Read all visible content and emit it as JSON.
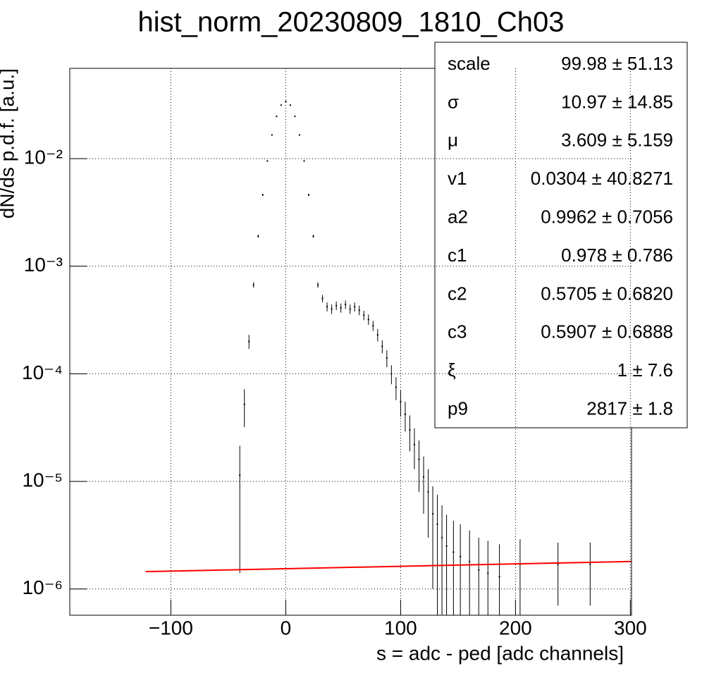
{
  "chart_data": {
    "type": "scatter",
    "title": "hist_norm_20230809_1810_Ch03",
    "x_label": "s = adc - ped [adc channels]",
    "y_label": "dN/ds p.d.f. [a.u.]",
    "log_y": true,
    "grid": true,
    "color": "#000000",
    "xlim": [
      -188,
      301
    ],
    "ylim": [
      5.7e-07,
      0.069
    ],
    "xticks": [
      {
        "value": -100,
        "label": "−100"
      },
      0,
      100,
      200,
      300
    ],
    "yticks": [
      {
        "value": 1e-06,
        "label": "10⁻⁶"
      },
      {
        "value": 1e-05,
        "label": "10⁻⁵"
      },
      {
        "value": 0.0001,
        "label": "10⁻⁴"
      },
      {
        "value": 0.001,
        "label": "10⁻³"
      },
      {
        "value": 0.01,
        "label": "10⁻²"
      }
    ],
    "x": [
      -40,
      -36,
      -32,
      -28,
      -24,
      -20,
      -16,
      -12,
      -8,
      -4,
      0,
      4,
      8,
      12,
      16,
      20,
      24,
      28,
      32,
      36,
      40,
      44,
      48,
      52,
      56,
      60,
      64,
      68,
      72,
      76,
      80,
      84,
      88,
      92,
      96,
      100,
      104,
      108,
      112,
      116,
      120,
      124,
      128,
      132,
      136,
      140,
      146,
      152,
      160,
      168,
      176,
      186,
      204,
      237,
      265
    ],
    "values": [
      1.14e-05,
      5.2e-05,
      0.0002,
      0.00067,
      0.0019,
      0.0046,
      0.0095,
      0.0166,
      0.0247,
      0.0314,
      0.034,
      0.0314,
      0.0247,
      0.0166,
      0.0095,
      0.0046,
      0.0019,
      0.00067,
      0.0005,
      0.00042,
      0.0004,
      0.00043,
      0.00041,
      0.00044,
      0.0004,
      0.00042,
      0.00039,
      0.00035,
      0.00032,
      0.00028,
      0.00023,
      0.00018,
      0.00014,
      0.0001,
      7.5e-05,
      5.5e-05,
      4.2e-05,
      3e-05,
      2.2e-05,
      1.6e-05,
      1.1e-05,
      8e-06,
      5e-06,
      4e-06,
      3e-06,
      2.5e-06,
      2.2e-06,
      2e-06,
      1.8e-06,
      1.5e-06,
      1.4e-06,
      1.3e-06,
      1.7e-06,
      1.7e-06,
      1.7e-06
    ],
    "errors": [
      1e-05,
      2e-05,
      3e-05,
      4e-05,
      6e-05,
      0.0001,
      0.00015,
      0.0002,
      0.00025,
      0.00028,
      0.0003,
      0.00028,
      0.00025,
      0.0002,
      0.00015,
      0.0001,
      6e-05,
      4e-05,
      4e-05,
      4e-05,
      4e-05,
      4e-05,
      4e-05,
      4e-05,
      4e-05,
      4e-05,
      4e-05,
      3.5e-05,
      3.5e-05,
      3e-05,
      3e-05,
      2.5e-05,
      2.5e-05,
      2e-05,
      1.8e-05,
      1.5e-05,
      1.3e-05,
      1.1e-05,
      9e-06,
      8e-06,
      6e-06,
      5e-06,
      4e-06,
      3.5e-06,
      3e-06,
      2.4e-06,
      2.1e-06,
      2e-06,
      1.7e-06,
      1.5e-06,
      1.4e-06,
      1.3e-06,
      1.2e-06,
      1e-06,
      1e-06
    ],
    "fit": {
      "color": "#ff0000",
      "x": [
        -122,
        301
      ],
      "values": [
        1.45e-06,
        1.8e-06
      ]
    },
    "stats": [
      [
        "scale",
        "99.98 ± 51.13"
      ],
      [
        "σ",
        "10.97 ± 14.85"
      ],
      [
        "μ",
        "3.609 ± 5.159"
      ],
      [
        "v1",
        "0.0304 ± 40.8271"
      ],
      [
        "a2",
        "0.9962 ± 0.7056"
      ],
      [
        "c1",
        "0.978 ± 0.786"
      ],
      [
        "c2",
        "0.5705 ± 0.6820"
      ],
      [
        "c3",
        "0.5907 ± 0.6888"
      ],
      [
        "ξ",
        "1 ± 7.6"
      ],
      [
        "p9",
        "2817 ± 1.8"
      ]
    ]
  }
}
